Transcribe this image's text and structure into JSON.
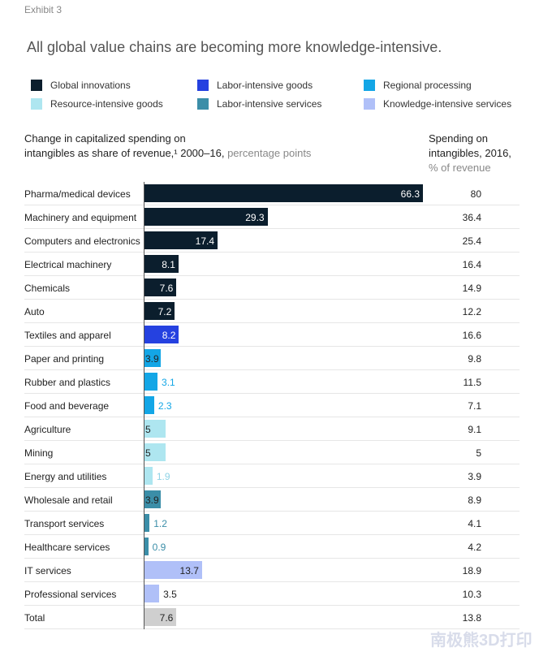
{
  "exhibit": "Exhibit 3",
  "watermark": "南极熊3D打印",
  "chart_data": {
    "type": "bar",
    "title": "All global value chains are becoming more knowledge-intensive.",
    "left_header": {
      "line1": "Change in capitalized spending on",
      "line2_bold": "intangibles as share of revenue,¹ 2000–16,",
      "line2_unit": "percentage points"
    },
    "right_header": {
      "line1": "Spending on",
      "line2": "intangibles, 2016,",
      "unit": "% of revenue"
    },
    "legend": [
      {
        "name": "Global innovations",
        "color": "#0b1e2d"
      },
      {
        "name": "Labor-intensive goods",
        "color": "#2541e0"
      },
      {
        "name": "Regional processing",
        "color": "#13a6e6"
      },
      {
        "name": "Resource-intensive goods",
        "color": "#aee6f0"
      },
      {
        "name": "Labor-intensive services",
        "color": "#3b8ea8"
      },
      {
        "name": "Knowledge-intensive services",
        "color": "#b0c0f8"
      }
    ],
    "total_color": "#cfcfcf",
    "xlim": [
      0,
      66.3
    ],
    "rows": [
      {
        "category": "Pharma/medical devices",
        "group": 0,
        "change": 66.3,
        "change_label": "66.3",
        "spending": "80",
        "label_inside": true,
        "label_color": "#ffffff"
      },
      {
        "category": "Machinery and equipment",
        "group": 0,
        "change": 29.3,
        "change_label": "29.3",
        "spending": "36.4",
        "label_inside": true,
        "label_color": "#ffffff"
      },
      {
        "category": "Computers and electronics",
        "group": 0,
        "change": 17.4,
        "change_label": "17.4",
        "spending": "25.4",
        "label_inside": true,
        "label_color": "#ffffff"
      },
      {
        "category": "Electrical machinery",
        "group": 0,
        "change": 8.1,
        "change_label": "8.1",
        "spending": "16.4",
        "label_inside": true,
        "label_color": "#ffffff"
      },
      {
        "category": "Chemicals",
        "group": 0,
        "change": 7.6,
        "change_label": "7.6",
        "spending": "14.9",
        "label_inside": true,
        "label_color": "#ffffff"
      },
      {
        "category": "Auto",
        "group": 0,
        "change": 7.2,
        "change_label": "7.2",
        "spending": "12.2",
        "label_inside": true,
        "label_color": "#ffffff"
      },
      {
        "category": "Textiles and apparel",
        "group": 1,
        "change": 8.2,
        "change_label": "8.2",
        "spending": "16.6",
        "label_inside": true,
        "label_color": "#ffffff"
      },
      {
        "category": "Paper and printing",
        "group": 2,
        "change": 3.9,
        "change_label": "3.9",
        "spending": "9.8",
        "label_inside": true,
        "label_color": "#222222"
      },
      {
        "category": "Rubber and plastics",
        "group": 2,
        "change": 3.1,
        "change_label": "3.1",
        "spending": "11.5",
        "label_inside": false,
        "label_color": "#13a6e6"
      },
      {
        "category": "Food and beverage",
        "group": 2,
        "change": 2.3,
        "change_label": "2.3",
        "spending": "7.1",
        "label_inside": false,
        "label_color": "#13a6e6"
      },
      {
        "category": "Agriculture",
        "group": 3,
        "change": 5,
        "change_label": "5",
        "spending": "9.1",
        "label_inside": true,
        "label_color": "#222222"
      },
      {
        "category": "Mining",
        "group": 3,
        "change": 5,
        "change_label": "5",
        "spending": "5",
        "label_inside": true,
        "label_color": "#222222"
      },
      {
        "category": "Energy and utilities",
        "group": 3,
        "change": 1.9,
        "change_label": "1.9",
        "spending": "3.9",
        "label_inside": false,
        "label_color": "#8fd3e6"
      },
      {
        "category": "Wholesale and retail",
        "group": 4,
        "change": 3.9,
        "change_label": "3.9",
        "spending": "8.9",
        "label_inside": true,
        "label_color": "#222222"
      },
      {
        "category": "Transport services",
        "group": 4,
        "change": 1.2,
        "change_label": "1.2",
        "spending": "4.1",
        "label_inside": false,
        "label_color": "#3b8ea8"
      },
      {
        "category": "Healthcare services",
        "group": 4,
        "change": 0.9,
        "change_label": "0.9",
        "spending": "4.2",
        "label_inside": false,
        "label_color": "#3b8ea8"
      },
      {
        "category": "IT services",
        "group": 5,
        "change": 13.7,
        "change_label": "13.7",
        "spending": "18.9",
        "label_inside": true,
        "label_color": "#222222"
      },
      {
        "category": "Professional services",
        "group": 5,
        "change": 3.5,
        "change_label": "3.5",
        "spending": "10.3",
        "label_inside": false,
        "label_color": "#222222"
      },
      {
        "category": "Total",
        "group": "total",
        "change": 7.6,
        "change_label": "7.6",
        "spending": "13.8",
        "label_inside": true,
        "label_color": "#222222"
      }
    ]
  }
}
